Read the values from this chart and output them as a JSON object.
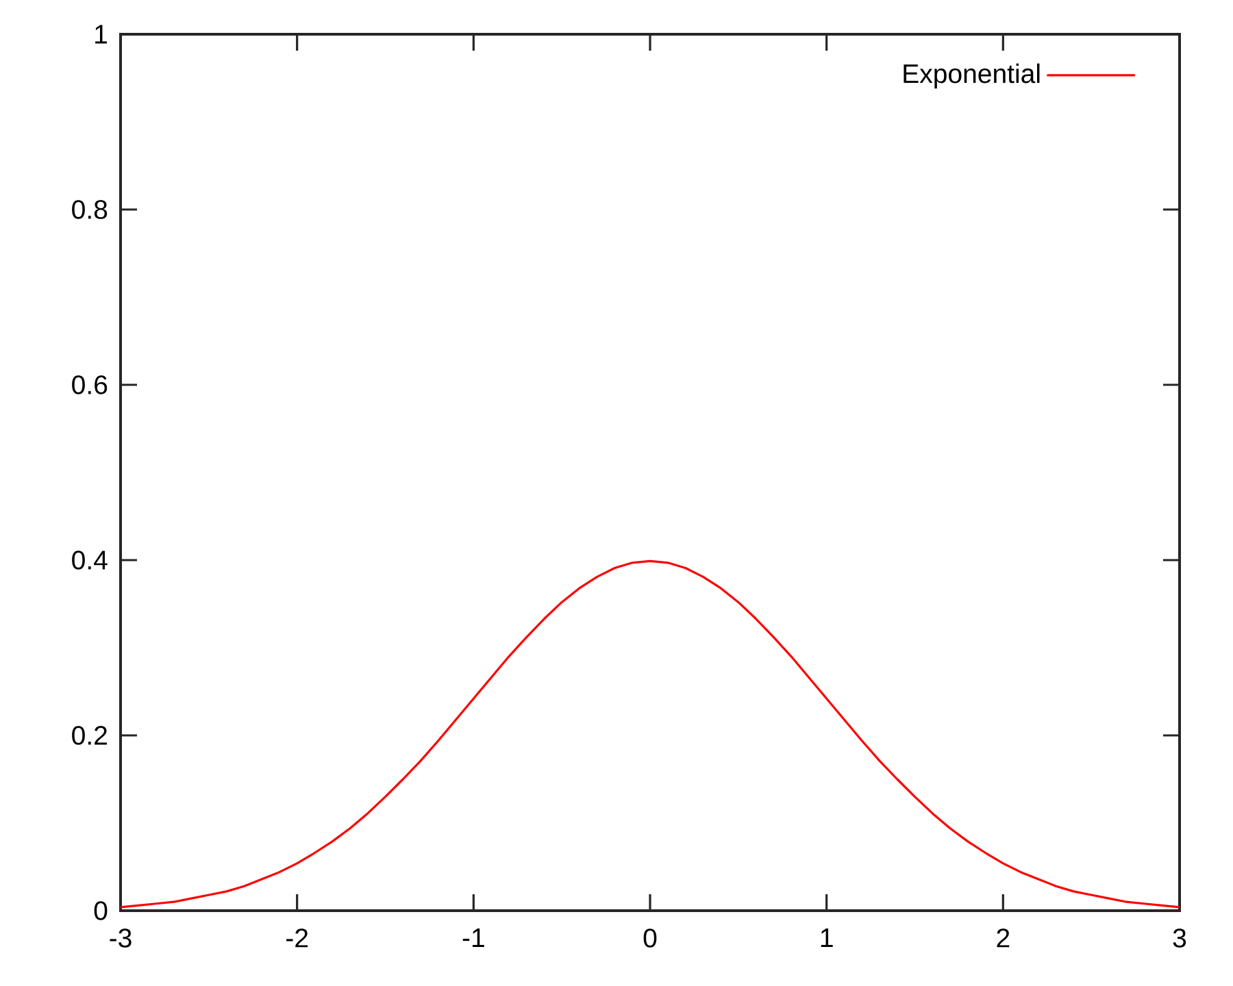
{
  "chart_data": {
    "type": "line",
    "x": [
      -3,
      -2.9,
      -2.8,
      -2.7,
      -2.6,
      -2.5,
      -2.4,
      -2.3,
      -2.2,
      -2.1,
      -2,
      -1.9,
      -1.8,
      -1.7,
      -1.6,
      -1.5,
      -1.4,
      -1.3,
      -1.2,
      -1.1,
      -1,
      -0.9,
      -0.8,
      -0.7,
      -0.6,
      -0.5,
      -0.4,
      -0.3,
      -0.2,
      -0.1,
      0,
      0.1,
      0.2,
      0.3,
      0.4,
      0.5,
      0.6,
      0.7,
      0.8,
      0.9,
      1,
      1.1,
      1.2,
      1.3,
      1.4,
      1.5,
      1.6,
      1.7,
      1.8,
      1.9,
      2,
      2.1,
      2.2,
      2.3,
      2.4,
      2.5,
      2.6,
      2.7,
      2.8,
      2.9,
      3
    ],
    "series": [
      {
        "name": "Exponential",
        "color": "#ff0000",
        "values": [
          0.004,
          0.006,
          0.008,
          0.01,
          0.014,
          0.018,
          0.022,
          0.028,
          0.036,
          0.044,
          0.054,
          0.066,
          0.079,
          0.094,
          0.111,
          0.13,
          0.15,
          0.171,
          0.194,
          0.218,
          0.242,
          0.266,
          0.29,
          0.312,
          0.333,
          0.352,
          0.368,
          0.381,
          0.391,
          0.397,
          0.399,
          0.397,
          0.391,
          0.381,
          0.368,
          0.352,
          0.333,
          0.312,
          0.29,
          0.266,
          0.242,
          0.218,
          0.194,
          0.171,
          0.15,
          0.13,
          0.111,
          0.094,
          0.079,
          0.066,
          0.054,
          0.044,
          0.036,
          0.028,
          0.022,
          0.018,
          0.014,
          0.01,
          0.008,
          0.006,
          0.004
        ]
      }
    ],
    "xlim": [
      -3,
      3
    ],
    "ylim": [
      0,
      1
    ],
    "xticks": [
      -3,
      -2,
      -1,
      0,
      1,
      2,
      3
    ],
    "yticks": [
      0,
      0.2,
      0.4,
      0.6,
      0.8,
      1
    ],
    "legend": "top right",
    "marker": "none",
    "line_style": "solid"
  }
}
